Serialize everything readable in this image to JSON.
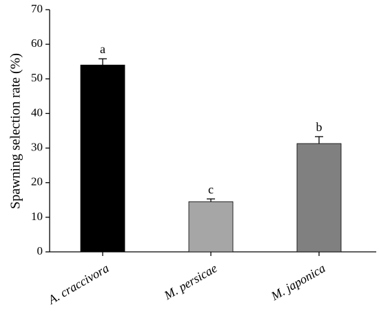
{
  "chart_data": {
    "type": "bar",
    "title": "",
    "xlabel": "",
    "ylabel": "Spawning selection rate (%)",
    "ylim": [
      0,
      70
    ],
    "yticks": [
      0,
      10,
      20,
      30,
      40,
      50,
      60,
      70
    ],
    "grid": false,
    "categories": [
      "A. craccivora",
      "M. persicae",
      "M. japonica"
    ],
    "values": [
      54.0,
      14.5,
      31.3
    ],
    "errors": [
      1.8,
      0.8,
      2.0
    ],
    "significance_letters": [
      "a",
      "c",
      "b"
    ],
    "bar_colors": [
      "#000000",
      "#a6a6a6",
      "#808080"
    ]
  }
}
